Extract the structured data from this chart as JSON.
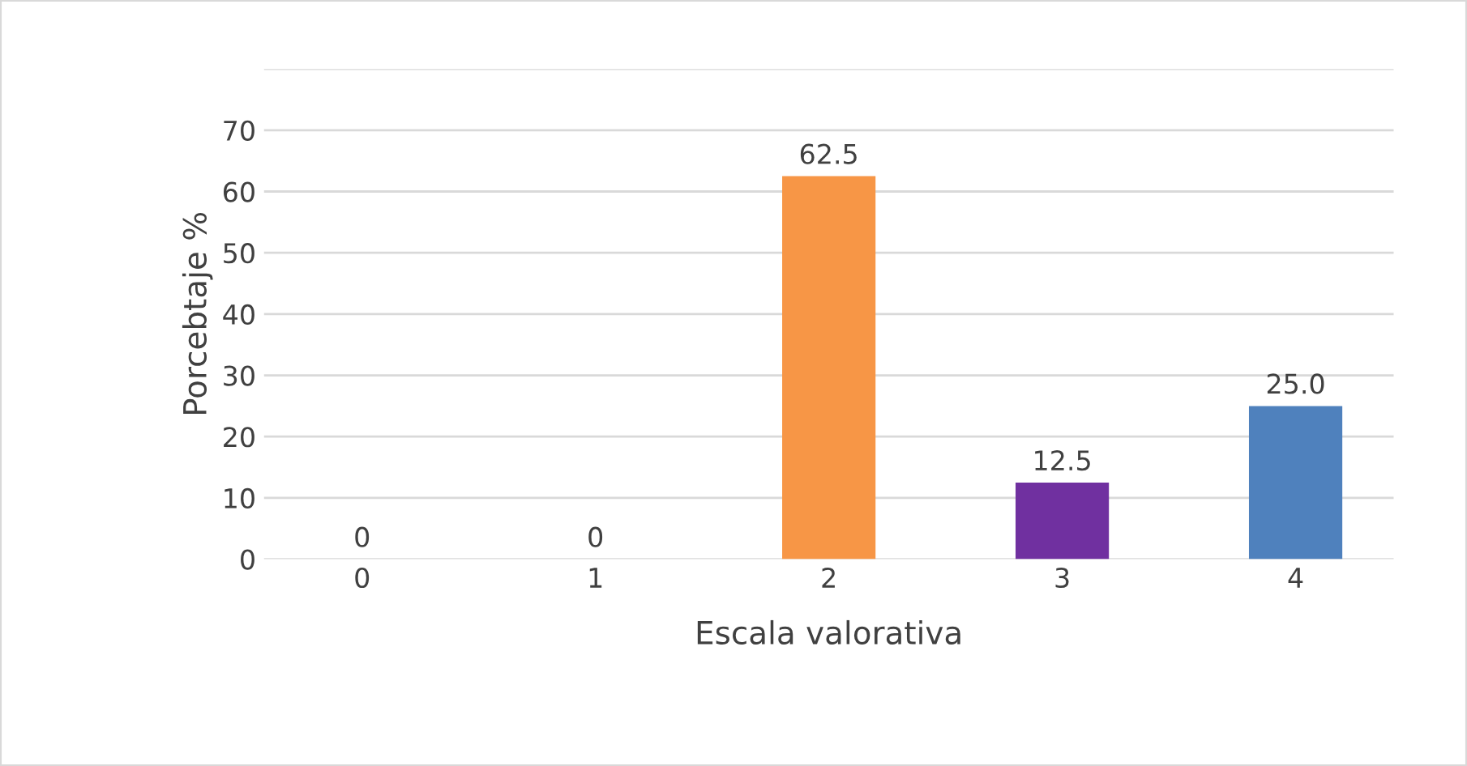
{
  "chart_data": {
    "type": "bar",
    "xlabel": "Escala valorativa",
    "ylabel": "Porcebtaje %",
    "categories": [
      "0",
      "1",
      "2",
      "3",
      "4"
    ],
    "values": [
      0,
      0,
      62.5,
      12.5,
      25.0
    ],
    "colors": [
      "#953735",
      "#604a7b",
      "#f79646",
      "#7030a0",
      "#4f81bd"
    ],
    "value_labels": [
      "0",
      "0",
      "62.5",
      "12.5",
      "25.0"
    ],
    "ylim": [
      0,
      80
    ],
    "yticks": [
      0,
      10,
      20,
      30,
      40,
      50,
      60,
      70,
      {
        "value": 80,
        "label": null
      }
    ],
    "grid": "y",
    "legend": false
  }
}
